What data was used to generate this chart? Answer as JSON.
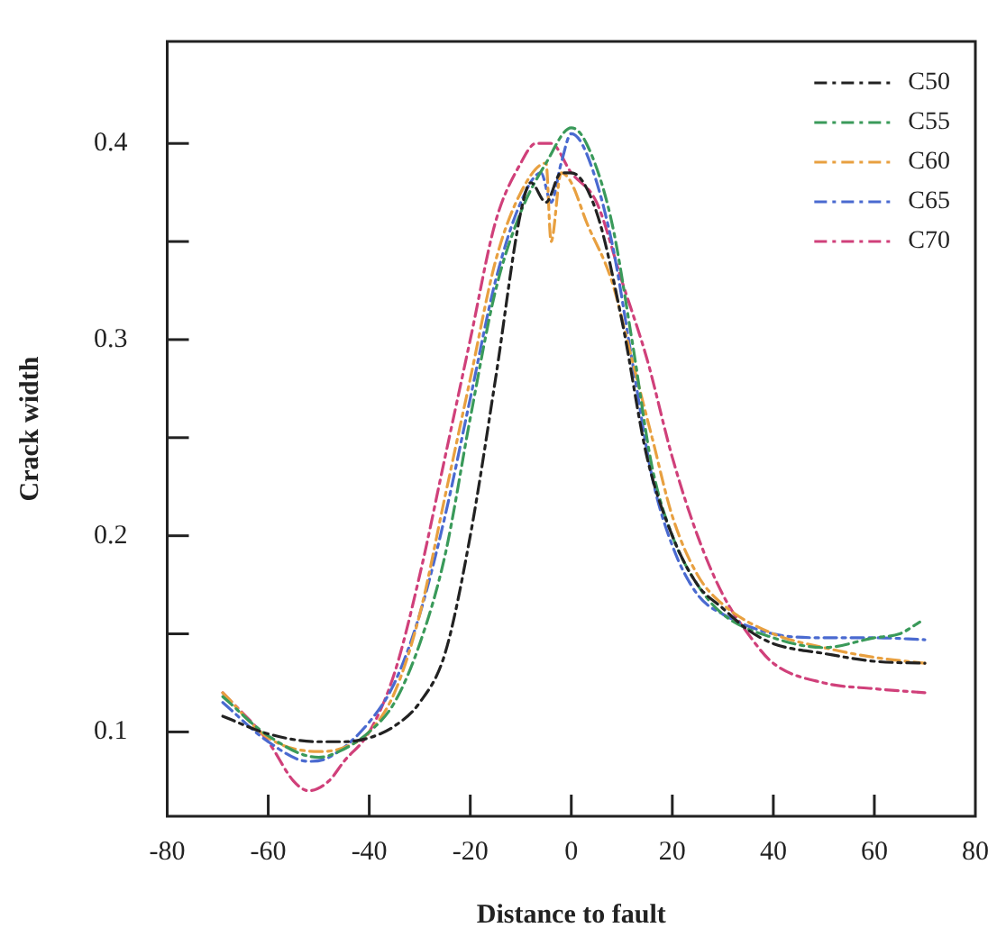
{
  "chart_data": {
    "type": "line",
    "xlabel": "Distance to fault",
    "ylabel": "Crack width",
    "xlim": [
      -80,
      80
    ],
    "xticks": [
      -80,
      -60,
      -40,
      -20,
      0,
      20,
      40,
      60,
      80
    ],
    "ylim": [
      0.057,
      0.452
    ],
    "yticks": [
      0.1,
      {
        "value": 0.15,
        "label": null
      },
      0.2,
      {
        "value": 0.25,
        "label": null
      },
      0.3,
      {
        "value": 0.35,
        "label": null
      },
      0.4
    ],
    "grid": false,
    "legend": "top right",
    "marker": "none",
    "line_style": "dashed",
    "series": [
      {
        "name": "C50",
        "color": "#222222",
        "x": [
          -69,
          -60,
          -50,
          -45,
          -40,
          -35,
          -30,
          -25,
          -20,
          -15,
          -10,
          -8,
          -5,
          -2,
          0,
          5,
          10,
          15,
          20,
          25,
          30,
          35,
          40,
          50,
          60,
          70
        ],
        "values": [
          0.108,
          0.099,
          0.095,
          0.095,
          0.097,
          0.103,
          0.115,
          0.14,
          0.2,
          0.28,
          0.365,
          0.38,
          0.37,
          0.385,
          0.385,
          0.365,
          0.31,
          0.24,
          0.2,
          0.175,
          0.163,
          0.152,
          0.145,
          0.14,
          0.136,
          0.135
        ]
      },
      {
        "name": "C55",
        "color": "#3a9a5a",
        "x": [
          -69,
          -60,
          -50,
          -46,
          -40,
          -35,
          -30,
          -25,
          -20,
          -15,
          -10,
          -5,
          0,
          3,
          8,
          12,
          16,
          20,
          25,
          30,
          40,
          50,
          60,
          65,
          69
        ],
        "values": [
          0.118,
          0.098,
          0.087,
          0.09,
          0.1,
          0.115,
          0.145,
          0.19,
          0.26,
          0.325,
          0.365,
          0.39,
          0.408,
          0.4,
          0.36,
          0.3,
          0.235,
          0.2,
          0.175,
          0.16,
          0.148,
          0.143,
          0.148,
          0.15,
          0.156
        ]
      },
      {
        "name": "C60",
        "color": "#e8a040",
        "x": [
          -69,
          -60,
          -50,
          -45,
          -40,
          -35,
          -30,
          -25,
          -20,
          -15,
          -10,
          -5,
          -4,
          -2,
          0,
          3,
          8,
          12,
          16,
          20,
          25,
          30,
          40,
          50,
          60,
          70
        ],
        "values": [
          0.12,
          0.097,
          0.09,
          0.092,
          0.1,
          0.12,
          0.16,
          0.22,
          0.28,
          0.34,
          0.375,
          0.39,
          0.35,
          0.385,
          0.38,
          0.36,
          0.33,
          0.29,
          0.25,
          0.21,
          0.18,
          0.165,
          0.15,
          0.143,
          0.138,
          0.135
        ]
      },
      {
        "name": "C65",
        "color": "#4a6ad0",
        "x": [
          -69,
          -60,
          -52,
          -48,
          -40,
          -35,
          -30,
          -25,
          -20,
          -15,
          -10,
          -6,
          -4,
          -2,
          0,
          3,
          8,
          12,
          16,
          20,
          25,
          30,
          40,
          50,
          60,
          70
        ],
        "values": [
          0.115,
          0.095,
          0.085,
          0.087,
          0.105,
          0.125,
          0.16,
          0.21,
          0.27,
          0.33,
          0.37,
          0.385,
          0.37,
          0.39,
          0.405,
          0.395,
          0.35,
          0.29,
          0.23,
          0.195,
          0.17,
          0.16,
          0.15,
          0.148,
          0.148,
          0.147
        ]
      },
      {
        "name": "C70",
        "color": "#d0407a",
        "x": [
          -69,
          -60,
          -55,
          -52,
          -48,
          -45,
          -40,
          -35,
          -30,
          -25,
          -20,
          -15,
          -10,
          -7,
          -4,
          0,
          5,
          10,
          15,
          20,
          25,
          30,
          35,
          40,
          50,
          60,
          70
        ],
        "values": [
          0.12,
          0.095,
          0.075,
          0.07,
          0.075,
          0.085,
          0.1,
          0.13,
          0.18,
          0.24,
          0.3,
          0.36,
          0.39,
          0.4,
          0.4,
          0.385,
          0.37,
          0.33,
          0.29,
          0.24,
          0.2,
          0.17,
          0.15,
          0.135,
          0.125,
          0.122,
          0.12
        ]
      }
    ]
  }
}
